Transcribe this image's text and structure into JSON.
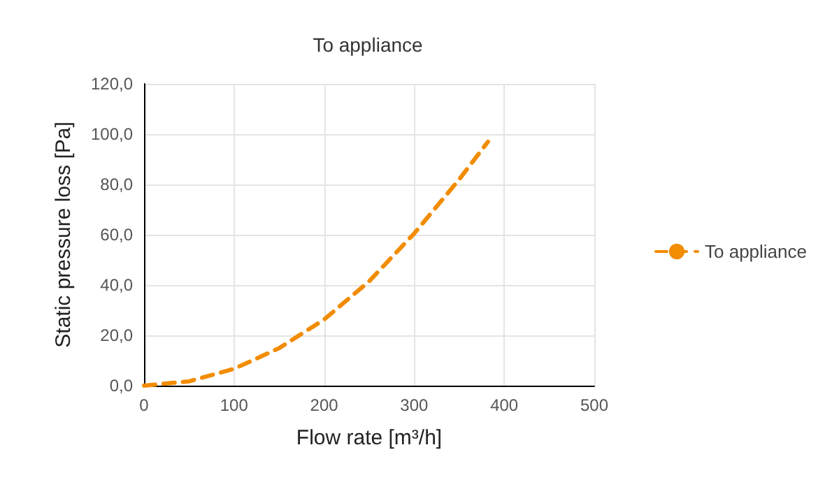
{
  "chart_data": {
    "type": "line",
    "title": "To appliance",
    "xlabel": "Flow rate [m³/h]",
    "ylabel": "Static pressure loss [Pa]",
    "x": [
      0,
      50,
      100,
      150,
      200,
      250,
      300,
      350,
      382
    ],
    "series": [
      {
        "name": "To appliance",
        "color": "#f28c00",
        "values": [
          0,
          1.7,
          6.7,
          14.9,
          26.3,
          41.5,
          60.5,
          82,
          97
        ]
      }
    ],
    "xlim": [
      0,
      500
    ],
    "xticks": [
      0,
      100,
      200,
      300,
      400,
      500
    ],
    "ylim": [
      0,
      120
    ],
    "yticks": [
      {
        "value": 0,
        "label": "0,0"
      },
      {
        "value": 20,
        "label": "20,0"
      },
      {
        "value": 40,
        "label": "40,0"
      },
      {
        "value": 60,
        "label": "60,0"
      },
      {
        "value": 80,
        "label": "80,0"
      },
      {
        "value": 100,
        "label": "100,0"
      },
      {
        "value": 120,
        "label": "120,0"
      }
    ],
    "grid": true,
    "legend": "right",
    "marker": "none",
    "line_style": "dashed"
  }
}
